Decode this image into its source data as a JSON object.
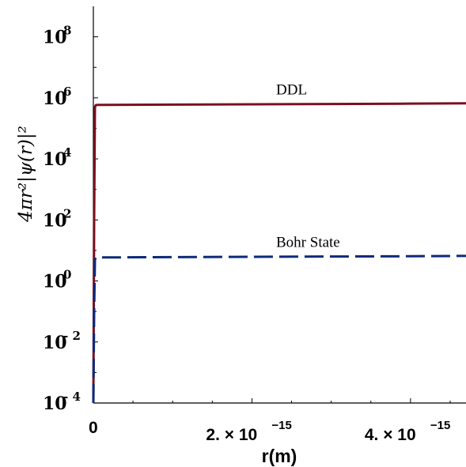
{
  "chart_data": {
    "type": "line",
    "xlabel": "r(m)",
    "ylabel": "4πr²|ψ(r)|²",
    "xlim": [
      0,
      4.7e-15
    ],
    "ylim_log10": [
      -4,
      9
    ],
    "y_scale": "log",
    "grid": false,
    "legend": "inline labels",
    "x_ticks": [
      {
        "value": 0,
        "mantissa": "0",
        "exponent": ""
      },
      {
        "value": 2e-15,
        "mantissa": "2. × 10",
        "exponent": "−15"
      },
      {
        "value": 4e-15,
        "mantissa": "4. × 10",
        "exponent": "−15"
      }
    ],
    "y_ticks": [
      {
        "log10": -4,
        "base": "10",
        "exponent": "- 4"
      },
      {
        "log10": -2,
        "base": "10",
        "exponent": "- 2"
      },
      {
        "log10": 0,
        "base": "10",
        "exponent": "0"
      },
      {
        "log10": 2,
        "base": "10",
        "exponent": "2"
      },
      {
        "log10": 4,
        "base": "10",
        "exponent": "4"
      },
      {
        "log10": 6,
        "base": "10",
        "exponent": "6"
      },
      {
        "log10": 8,
        "base": "10",
        "exponent": "8"
      }
    ],
    "series": [
      {
        "name": "DDL",
        "color": "#7a1020",
        "style": "solid",
        "x": [
          0,
          1e-17,
          2e-17,
          3e-17,
          5e-17,
          1e-16,
          1e-15,
          2e-15,
          3e-15,
          4e-15,
          4.7e-15
        ],
        "y_log10": [
          -4,
          2,
          5.7,
          5.76,
          5.77,
          5.77,
          5.78,
          5.79,
          5.8,
          5.81,
          5.82
        ]
      },
      {
        "name": "Bohr State",
        "color": "#0d2a7a",
        "style": "dashed",
        "x": [
          0,
          1e-17,
          2e-17,
          3e-17,
          5e-17,
          1e-16,
          1e-15,
          2e-15,
          3e-15,
          4e-15,
          4.7e-15
        ],
        "y_log10": [
          -4,
          -1,
          0.7,
          0.76,
          0.77,
          0.77,
          0.78,
          0.79,
          0.8,
          0.81,
          0.82
        ]
      }
    ]
  }
}
